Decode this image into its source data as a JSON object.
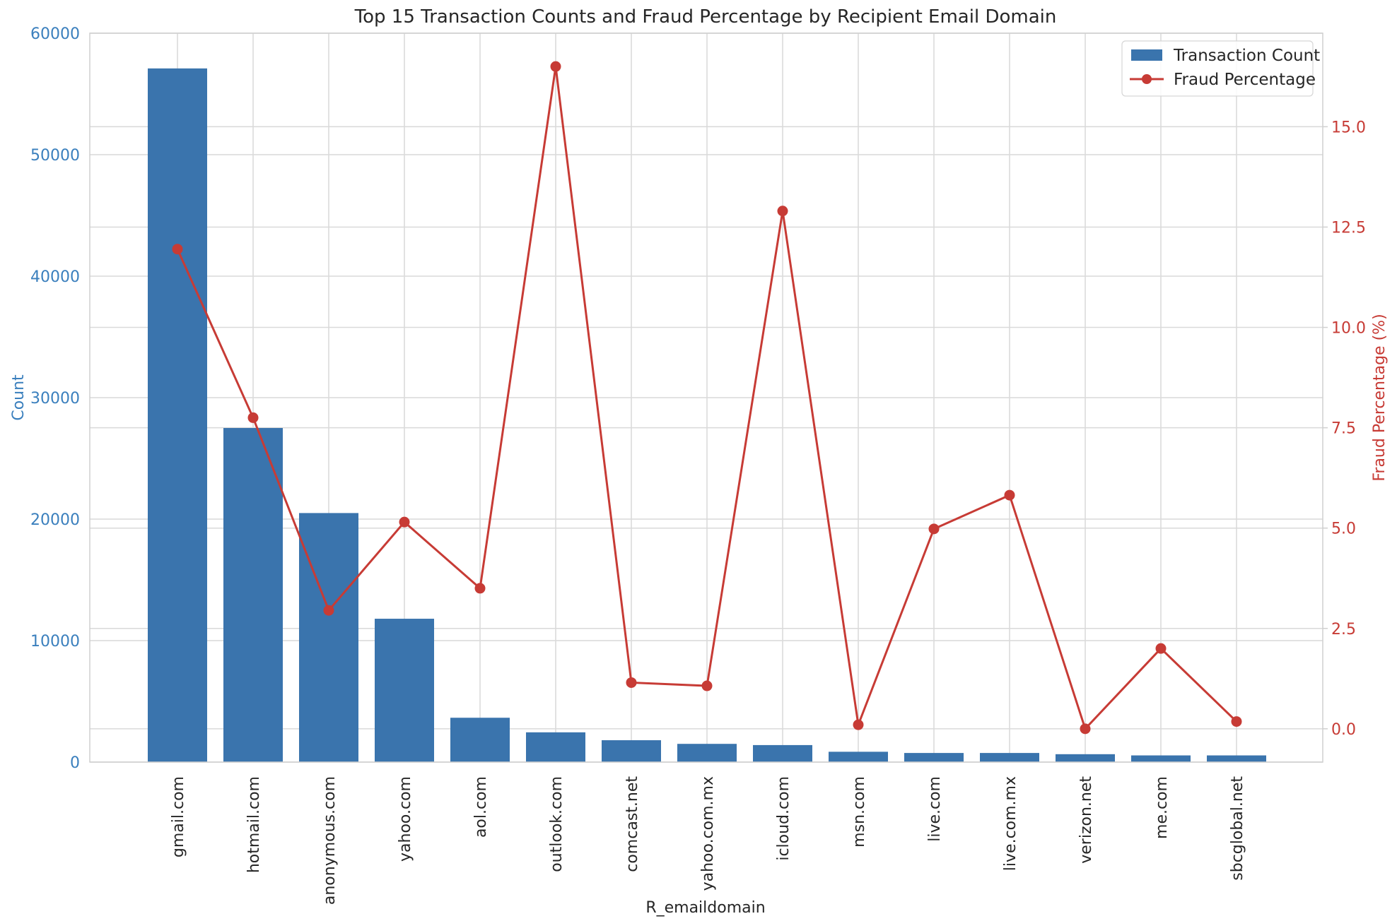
{
  "chart_data": {
    "type": "bar",
    "title": "Top 15 Transaction Counts and Fraud Percentage by Recipient Email Domain",
    "xlabel": "R_emaildomain",
    "ylabel_left": "Count",
    "ylabel_right": "Fraud Percentage (%)",
    "categories": [
      "gmail.com",
      "hotmail.com",
      "anonymous.com",
      "yahoo.com",
      "aol.com",
      "outlook.com",
      "comcast.net",
      "yahoo.com.mx",
      "icloud.com",
      "msn.com",
      "live.com",
      "live.com.mx",
      "verizon.net",
      "me.com",
      "sbcglobal.net"
    ],
    "series": [
      {
        "name": "Transaction Count",
        "type": "bar",
        "axis": "left",
        "color": "#3a74ad",
        "values": [
          57100,
          27500,
          20500,
          11800,
          3650,
          2450,
          1800,
          1500,
          1400,
          850,
          750,
          750,
          650,
          550,
          550
        ]
      },
      {
        "name": "Fraud Percentage",
        "type": "line",
        "axis": "right",
        "color": "#c73b35",
        "values": [
          11.95,
          7.75,
          2.95,
          5.15,
          3.5,
          16.5,
          1.15,
          1.07,
          12.9,
          0.1,
          4.98,
          5.82,
          0.0,
          2.0,
          0.18
        ]
      }
    ],
    "y_left": {
      "ylim": [
        0,
        60000
      ],
      "ticks": [
        "0",
        "10000",
        "20000",
        "30000",
        "40000",
        "50000",
        "60000"
      ],
      "color": "#3a7fbd"
    },
    "y_right": {
      "ylim": [
        -0.83,
        17.33
      ],
      "ticks": [
        "0.0",
        "2.5",
        "5.0",
        "7.5",
        "10.0",
        "12.5",
        "15.0"
      ],
      "color": "#c73b35"
    },
    "grid": true,
    "legend_position": "top-right"
  }
}
